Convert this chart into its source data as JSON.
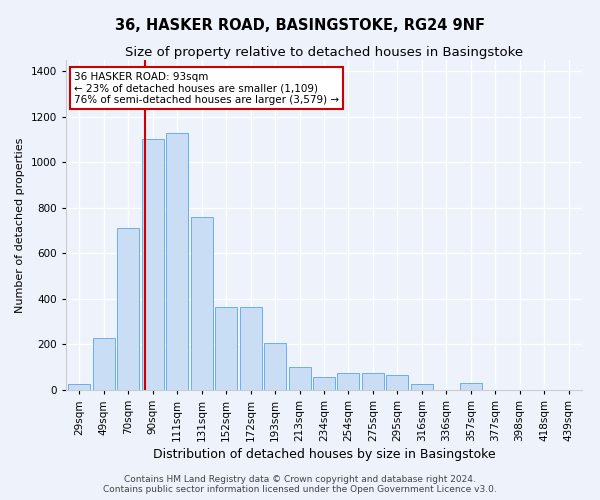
{
  "title": "36, HASKER ROAD, BASINGSTOKE, RG24 9NF",
  "subtitle": "Size of property relative to detached houses in Basingstoke",
  "xlabel": "Distribution of detached houses by size in Basingstoke",
  "ylabel": "Number of detached properties",
  "bin_labels": [
    "29sqm",
    "49sqm",
    "70sqm",
    "90sqm",
    "111sqm",
    "131sqm",
    "152sqm",
    "172sqm",
    "193sqm",
    "213sqm",
    "234sqm",
    "254sqm",
    "275sqm",
    "295sqm",
    "316sqm",
    "336sqm",
    "357sqm",
    "377sqm",
    "398sqm",
    "418sqm",
    "439sqm"
  ],
  "bar_heights": [
    25,
    230,
    710,
    1105,
    1130,
    760,
    365,
    365,
    205,
    100,
    55,
    75,
    75,
    68,
    28,
    0,
    32,
    0,
    0,
    0,
    0
  ],
  "bar_color": "#c9ddf5",
  "bar_edge_color": "#6aaee8",
  "annotation_title": "36 HASKER ROAD: 93sqm",
  "annotation_line1": "← 23% of detached houses are smaller (1,109)",
  "annotation_line2": "76% of semi-detached houses are larger (3,579) →",
  "annotation_box_color": "#ffffff",
  "annotation_border_color": "#cc0000",
  "ylim": [
    0,
    1450
  ],
  "yticks": [
    0,
    200,
    400,
    600,
    800,
    1000,
    1200,
    1400
  ],
  "footer1": "Contains HM Land Registry data © Crown copyright and database right 2024.",
  "footer2": "Contains public sector information licensed under the Open Government Licence v3.0.",
  "bg_color": "#edf2fb",
  "grid_color": "#ffffff",
  "title_fontsize": 10.5,
  "subtitle_fontsize": 9.5,
  "ylabel_fontsize": 8,
  "xlabel_fontsize": 9,
  "tick_fontsize": 7.5,
  "footer_fontsize": 6.5,
  "annot_fontsize": 7.5
}
